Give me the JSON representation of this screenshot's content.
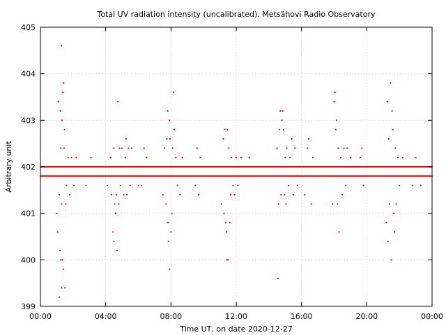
{
  "chart_data": {
    "type": "scatter",
    "title": "Total UV radiation intensity (uncalibrated). Metsähovi Radio Observatory",
    "xlabel": "Time UT, on date 2020-12-27",
    "ylabel": "Arbitrary unit",
    "xlim": [
      0,
      24
    ],
    "ylim": [
      399,
      405
    ],
    "x_ticks": [
      {
        "value": 0,
        "label": "00:00"
      },
      {
        "value": 4,
        "label": "04:00"
      },
      {
        "value": 8,
        "label": "08:00"
      },
      {
        "value": 12,
        "label": "12:00"
      },
      {
        "value": 16,
        "label": "16:00"
      },
      {
        "value": 20,
        "label": "20:00"
      },
      {
        "value": 24,
        "label": "00:00"
      }
    ],
    "y_ticks": [
      {
        "value": 399,
        "label": "399"
      },
      {
        "value": 400,
        "label": "400"
      },
      {
        "value": 401,
        "label": "401"
      },
      {
        "value": 402,
        "label": "402"
      },
      {
        "value": 403,
        "label": "403"
      },
      {
        "value": 404,
        "label": "404"
      },
      {
        "value": 405,
        "label": "405"
      }
    ],
    "grid": true,
    "marker_color": "#ff0000",
    "baseline": {
      "levels": [
        401.8,
        402.0
      ],
      "x_start": 0,
      "x_end": 24,
      "step": 0.03333
    },
    "points": [
      {
        "x": 1.0,
        "y": 401.0
      },
      {
        "x": 1.05,
        "y": 400.6
      },
      {
        "x": 1.1,
        "y": 403.4
      },
      {
        "x": 1.15,
        "y": 399.2
      },
      {
        "x": 1.2,
        "y": 400.2
      },
      {
        "x": 1.22,
        "y": 403.2
      },
      {
        "x": 1.25,
        "y": 400.0
      },
      {
        "x": 1.28,
        "y": 404.6
      },
      {
        "x": 1.3,
        "y": 399.4
      },
      {
        "x": 1.32,
        "y": 403.0
      },
      {
        "x": 1.35,
        "y": 400.0
      },
      {
        "x": 1.38,
        "y": 403.6
      },
      {
        "x": 1.4,
        "y": 399.8
      },
      {
        "x": 1.42,
        "y": 403.8
      },
      {
        "x": 1.45,
        "y": 402.4
      },
      {
        "x": 1.48,
        "y": 402.8
      },
      {
        "x": 1.5,
        "y": 399.4
      },
      {
        "x": 1.55,
        "y": 401.2
      },
      {
        "x": 1.3,
        "y": 401.2
      },
      {
        "x": 1.25,
        "y": 402.4
      },
      {
        "x": 1.15,
        "y": 401.4
      },
      {
        "x": 1.6,
        "y": 401.6
      },
      {
        "x": 1.7,
        "y": 402.2
      },
      {
        "x": 1.8,
        "y": 401.4
      },
      {
        "x": 1.9,
        "y": 402.2
      },
      {
        "x": 2.05,
        "y": 401.6
      },
      {
        "x": 2.2,
        "y": 402.2
      },
      {
        "x": 2.8,
        "y": 401.6
      },
      {
        "x": 3.1,
        "y": 402.2
      },
      {
        "x": 4.1,
        "y": 401.6
      },
      {
        "x": 4.3,
        "y": 402.2
      },
      {
        "x": 4.35,
        "y": 401.4
      },
      {
        "x": 4.45,
        "y": 400.6
      },
      {
        "x": 4.5,
        "y": 402.4
      },
      {
        "x": 4.5,
        "y": 400.4
      },
      {
        "x": 4.55,
        "y": 401.2
      },
      {
        "x": 4.6,
        "y": 401.0
      },
      {
        "x": 4.65,
        "y": 401.4
      },
      {
        "x": 4.7,
        "y": 400.2
      },
      {
        "x": 4.75,
        "y": 403.4
      },
      {
        "x": 4.8,
        "y": 401.2
      },
      {
        "x": 4.85,
        "y": 402.4
      },
      {
        "x": 4.9,
        "y": 401.6
      },
      {
        "x": 5.0,
        "y": 402.4
      },
      {
        "x": 5.1,
        "y": 401.4
      },
      {
        "x": 5.2,
        "y": 402.2
      },
      {
        "x": 5.25,
        "y": 402.6
      },
      {
        "x": 5.3,
        "y": 401.4
      },
      {
        "x": 5.4,
        "y": 402.4
      },
      {
        "x": 5.5,
        "y": 401.6
      },
      {
        "x": 5.6,
        "y": 402.4
      },
      {
        "x": 5.8,
        "y": 401.8
      },
      {
        "x": 6.0,
        "y": 401.6
      },
      {
        "x": 6.2,
        "y": 401.6
      },
      {
        "x": 6.35,
        "y": 402.4
      },
      {
        "x": 6.5,
        "y": 402.2
      },
      {
        "x": 7.5,
        "y": 401.4
      },
      {
        "x": 7.6,
        "y": 402.4
      },
      {
        "x": 7.7,
        "y": 401.2
      },
      {
        "x": 7.75,
        "y": 402.6
      },
      {
        "x": 7.8,
        "y": 403.2
      },
      {
        "x": 7.82,
        "y": 400.8
      },
      {
        "x": 7.85,
        "y": 400.4
      },
      {
        "x": 7.9,
        "y": 403.0
      },
      {
        "x": 7.92,
        "y": 399.8
      },
      {
        "x": 7.95,
        "y": 402.6
      },
      {
        "x": 8.0,
        "y": 400.6
      },
      {
        "x": 8.05,
        "y": 401.0
      },
      {
        "x": 8.1,
        "y": 402.4
      },
      {
        "x": 8.15,
        "y": 403.6
      },
      {
        "x": 8.2,
        "y": 402.8
      },
      {
        "x": 8.3,
        "y": 402.2
      },
      {
        "x": 8.4,
        "y": 401.6
      },
      {
        "x": 8.55,
        "y": 401.4
      },
      {
        "x": 8.7,
        "y": 402.2
      },
      {
        "x": 9.5,
        "y": 401.6
      },
      {
        "x": 9.6,
        "y": 402.4
      },
      {
        "x": 9.7,
        "y": 401.4
      },
      {
        "x": 9.8,
        "y": 402.2
      },
      {
        "x": 11.1,
        "y": 401.2
      },
      {
        "x": 11.2,
        "y": 402.6
      },
      {
        "x": 11.25,
        "y": 401.0
      },
      {
        "x": 11.3,
        "y": 402.8
      },
      {
        "x": 11.35,
        "y": 400.8
      },
      {
        "x": 11.4,
        "y": 400.6
      },
      {
        "x": 11.42,
        "y": 400.0
      },
      {
        "x": 11.45,
        "y": 402.8
      },
      {
        "x": 11.5,
        "y": 400.0
      },
      {
        "x": 11.55,
        "y": 402.4
      },
      {
        "x": 11.6,
        "y": 400.8
      },
      {
        "x": 11.65,
        "y": 401.4
      },
      {
        "x": 11.7,
        "y": 402.2
      },
      {
        "x": 11.8,
        "y": 401.6
      },
      {
        "x": 11.9,
        "y": 401.4
      },
      {
        "x": 12.0,
        "y": 402.2
      },
      {
        "x": 12.1,
        "y": 401.6
      },
      {
        "x": 12.3,
        "y": 402.2
      },
      {
        "x": 12.8,
        "y": 402.2
      },
      {
        "x": 14.5,
        "y": 402.4
      },
      {
        "x": 14.55,
        "y": 399.6
      },
      {
        "x": 14.6,
        "y": 401.2
      },
      {
        "x": 14.65,
        "y": 402.8
      },
      {
        "x": 14.7,
        "y": 403.2
      },
      {
        "x": 14.75,
        "y": 401.4
      },
      {
        "x": 14.8,
        "y": 403.0
      },
      {
        "x": 14.85,
        "y": 403.2
      },
      {
        "x": 14.9,
        "y": 402.8
      },
      {
        "x": 14.95,
        "y": 401.4
      },
      {
        "x": 15.0,
        "y": 402.2
      },
      {
        "x": 15.05,
        "y": 401.2
      },
      {
        "x": 15.1,
        "y": 402.4
      },
      {
        "x": 15.2,
        "y": 401.6
      },
      {
        "x": 15.3,
        "y": 402.2
      },
      {
        "x": 15.4,
        "y": 402.6
      },
      {
        "x": 15.5,
        "y": 401.4
      },
      {
        "x": 15.6,
        "y": 402.4
      },
      {
        "x": 15.75,
        "y": 401.6
      },
      {
        "x": 16.2,
        "y": 401.4
      },
      {
        "x": 16.35,
        "y": 402.4
      },
      {
        "x": 16.45,
        "y": 402.6
      },
      {
        "x": 16.6,
        "y": 401.2
      },
      {
        "x": 16.7,
        "y": 402.2
      },
      {
        "x": 17.9,
        "y": 401.2
      },
      {
        "x": 18.0,
        "y": 403.4
      },
      {
        "x": 18.05,
        "y": 403.6
      },
      {
        "x": 18.1,
        "y": 402.8
      },
      {
        "x": 18.15,
        "y": 403.0
      },
      {
        "x": 18.2,
        "y": 401.2
      },
      {
        "x": 18.25,
        "y": 402.4
      },
      {
        "x": 18.3,
        "y": 400.6
      },
      {
        "x": 18.4,
        "y": 402.2
      },
      {
        "x": 18.5,
        "y": 401.4
      },
      {
        "x": 18.6,
        "y": 402.4
      },
      {
        "x": 18.7,
        "y": 401.6
      },
      {
        "x": 18.8,
        "y": 402.4
      },
      {
        "x": 19.0,
        "y": 402.2
      },
      {
        "x": 19.6,
        "y": 402.2
      },
      {
        "x": 19.7,
        "y": 402.4
      },
      {
        "x": 19.8,
        "y": 401.6
      },
      {
        "x": 21.2,
        "y": 400.8
      },
      {
        "x": 21.25,
        "y": 403.4
      },
      {
        "x": 21.3,
        "y": 400.4
      },
      {
        "x": 21.35,
        "y": 402.6
      },
      {
        "x": 21.4,
        "y": 401.2
      },
      {
        "x": 21.45,
        "y": 403.8
      },
      {
        "x": 21.5,
        "y": 400.0
      },
      {
        "x": 21.55,
        "y": 403.2
      },
      {
        "x": 21.6,
        "y": 402.8
      },
      {
        "x": 21.65,
        "y": 401.0
      },
      {
        "x": 21.7,
        "y": 400.6
      },
      {
        "x": 21.75,
        "y": 402.4
      },
      {
        "x": 21.8,
        "y": 401.2
      },
      {
        "x": 21.9,
        "y": 402.2
      },
      {
        "x": 22.0,
        "y": 401.6
      },
      {
        "x": 22.2,
        "y": 402.2
      },
      {
        "x": 22.8,
        "y": 401.6
      },
      {
        "x": 23.0,
        "y": 402.2
      },
      {
        "x": 23.3,
        "y": 401.6
      }
    ]
  }
}
